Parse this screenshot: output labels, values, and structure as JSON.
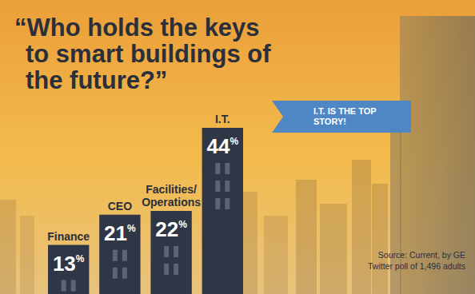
{
  "chart_data": {
    "type": "bar",
    "title": "“Who holds the keys to smart buildings of the future?”",
    "categories": [
      "Finance",
      "CEO",
      "Facilities/Operations",
      "I.T."
    ],
    "values": [
      13,
      21,
      22,
      44
    ],
    "value_labels": [
      "13%",
      "21%",
      "22%",
      "44%"
    ],
    "data_labels": true,
    "tick_labels": false,
    "color": "#2f3646",
    "annotation": "I.T. IS THE TOP STORY!",
    "source": [
      "Source: Current, by GE",
      "Twitter poll of 1,496 adults"
    ]
  }
}
